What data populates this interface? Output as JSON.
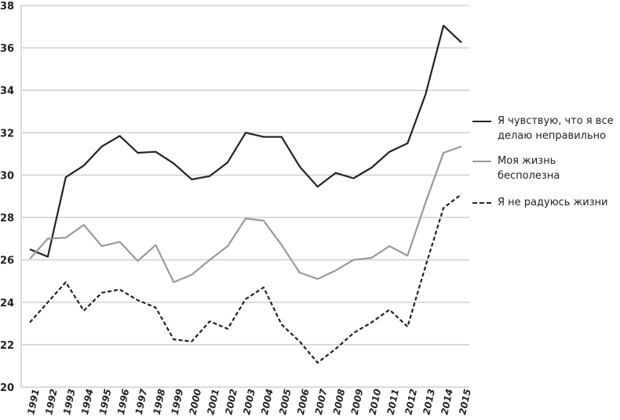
{
  "chart_data": {
    "type": "line",
    "title": "",
    "xlabel": "",
    "ylabel": "",
    "ylim": [
      20,
      38
    ],
    "yticks": [
      20,
      22,
      24,
      26,
      28,
      30,
      32,
      34,
      36,
      38
    ],
    "grid": true,
    "legend_position": "right",
    "x": [
      "1991",
      "1992",
      "1993",
      "1994",
      "1995",
      "1996",
      "1997",
      "1998",
      "1999",
      "2000",
      "2001",
      "2002",
      "2003",
      "2004",
      "2005",
      "2006",
      "2007",
      "2008",
      "2009",
      "2010",
      "2011",
      "2012",
      "2013",
      "2014",
      "2015"
    ],
    "series": [
      {
        "name": "Я чувствую, что я все делаю неправильно",
        "color": "#222222",
        "dash": "solid",
        "values": [
          26.5,
          26.15,
          29.9,
          30.45,
          31.35,
          31.85,
          31.05,
          31.1,
          30.55,
          29.8,
          29.95,
          30.6,
          32.0,
          31.8,
          31.8,
          30.4,
          29.45,
          30.1,
          29.85,
          30.35,
          31.1,
          31.5,
          33.8,
          37.05,
          36.25
        ]
      },
      {
        "name": "Моя жизнь бесполезна",
        "color": "#999999",
        "dash": "solid",
        "values": [
          26.05,
          27.0,
          27.05,
          27.65,
          26.65,
          26.85,
          25.95,
          26.7,
          24.95,
          25.3,
          26.0,
          26.65,
          27.95,
          27.85,
          26.7,
          25.4,
          25.1,
          25.5,
          26.0,
          26.1,
          26.65,
          26.2,
          28.7,
          31.05,
          31.35
        ]
      },
      {
        "name": "Я не радуюсь жизни",
        "color": "#222222",
        "dash": "dashed",
        "values": [
          23.05,
          24.0,
          24.95,
          23.6,
          24.45,
          24.6,
          24.1,
          23.75,
          22.25,
          22.15,
          23.1,
          22.75,
          24.15,
          24.7,
          22.95,
          22.15,
          21.15,
          21.8,
          22.55,
          23.05,
          23.65,
          22.85,
          25.7,
          28.45,
          29.1
        ]
      }
    ],
    "legend": {
      "items": [
        {
          "line1": "Я чувствую, что я все",
          "line2": "делаю неправильно"
        },
        {
          "line1": "Моя жизнь",
          "line2": "бесполезна"
        },
        {
          "line1": "Я не радуюсь жизни",
          "line2": ""
        }
      ]
    }
  }
}
